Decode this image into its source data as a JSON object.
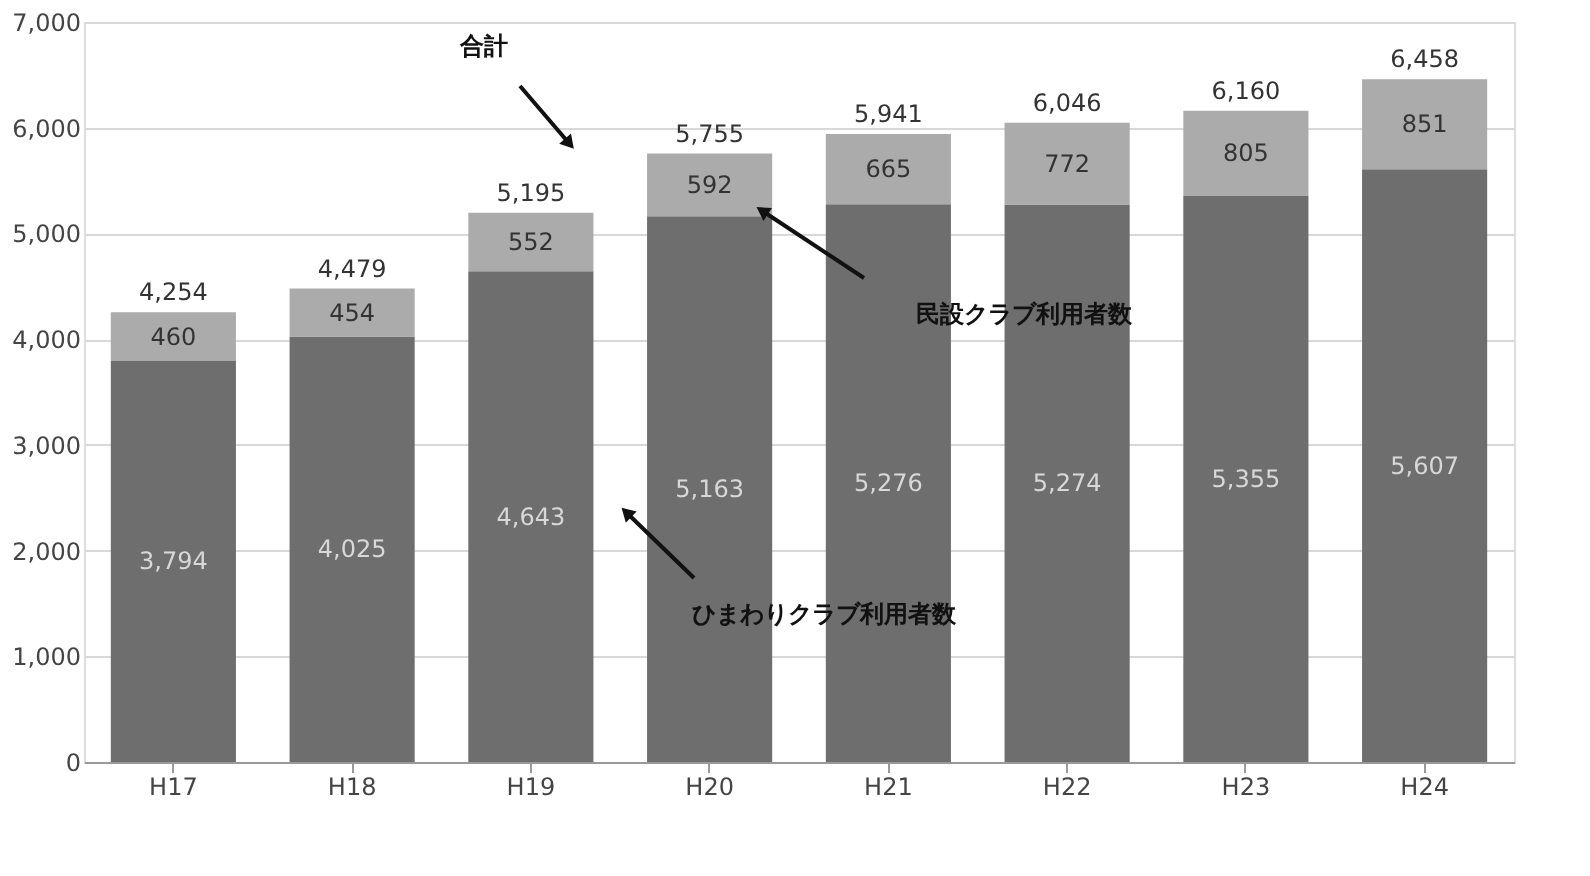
{
  "chart_data": {
    "type": "bar",
    "stacked": true,
    "categories": [
      "H17",
      "H18",
      "H19",
      "H20",
      "H21",
      "H22",
      "H23",
      "H24"
    ],
    "series": [
      {
        "color": "#6e6e6e",
        "values": [
          3794,
          4025,
          4643,
          5163,
          5276,
          5274,
          5355,
          5607
        ],
        "value_labels": [
          "3,794",
          "4,025",
          "4,643",
          "5,163",
          "5,276",
          "5,274",
          "5,355",
          "5,607"
        ]
      },
      {
        "color": "#ababab",
        "values": [
          460,
          454,
          552,
          592,
          665,
          772,
          805,
          851
        ],
        "value_labels": [
          "460",
          "454",
          "552",
          "592",
          "665",
          "772",
          "805",
          "851"
        ]
      }
    ],
    "totals": [
      "4,254",
      "4,479",
      "5,195",
      "5,755",
      "5,941",
      "6,046",
      "6,160",
      "6,458"
    ],
    "ylim": [
      0,
      7000
    ],
    "yticks": [
      0,
      {
        "value": 1000,
        "label": "1,000"
      },
      {
        "value": 2000,
        "label": "2,000"
      },
      {
        "value": 3000,
        "label": "3,000"
      },
      {
        "value": 4000,
        "label": "4,000"
      },
      {
        "value": 5000,
        "label": "5,000"
      },
      {
        "value": 6000,
        "label": "6,000"
      },
      {
        "value": 7000,
        "label": "7,000"
      }
    ],
    "grid": "y",
    "annotations": [
      "合計",
      "民設クラブ利用者数",
      "ひまわりクラブ利用者数"
    ]
  }
}
